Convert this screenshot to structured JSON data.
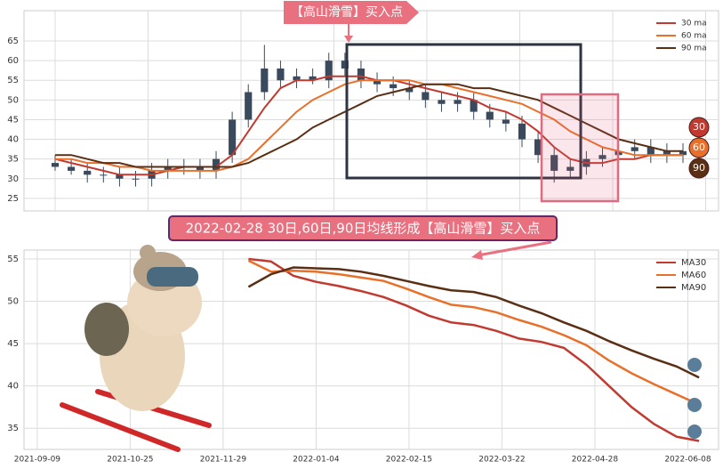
{
  "chart_data": [
    {
      "type": "candlestick",
      "annotation": "【高山滑雪】买入点",
      "color": "#3a4a5c",
      "open": [
        34,
        33,
        32,
        31,
        31,
        30,
        30,
        32,
        33,
        33,
        32,
        36,
        45,
        52,
        58,
        55,
        56,
        55,
        60,
        58,
        55,
        54,
        53,
        52,
        50,
        49,
        50,
        47,
        45,
        44,
        40,
        36,
        32,
        33,
        35,
        36,
        37,
        38,
        36,
        37
      ],
      "high": [
        36,
        35,
        34,
        33,
        33,
        32,
        34,
        35,
        35,
        35,
        37,
        47,
        54,
        64,
        60,
        58,
        58,
        62,
        62,
        60,
        57,
        56,
        55,
        54,
        52,
        52,
        52,
        49,
        47,
        46,
        42,
        38,
        35,
        37,
        38,
        39,
        40,
        40,
        39,
        39
      ],
      "low": [
        32,
        31,
        29,
        29,
        28,
        28,
        28,
        30,
        31,
        30,
        30,
        34,
        43,
        50,
        53,
        53,
        54,
        53,
        56,
        53,
        52,
        51,
        50,
        48,
        47,
        47,
        45,
        43,
        42,
        38,
        34,
        29,
        30,
        31,
        33,
        34,
        35,
        34,
        34,
        34
      ],
      "close": [
        33,
        32,
        31,
        31,
        30,
        30,
        32,
        33,
        33,
        32,
        35,
        45,
        52,
        58,
        55,
        56,
        55,
        60,
        58,
        55,
        54,
        53,
        52,
        50,
        49,
        50,
        47,
        45,
        44,
        40,
        36,
        32,
        33,
        35,
        36,
        37,
        38,
        36,
        37,
        36
      ],
      "series": [
        {
          "name": "30 ma",
          "color": "#c23a2f",
          "values": [
            35,
            34,
            33,
            32,
            31,
            31,
            31,
            32,
            33,
            33,
            33,
            36,
            42,
            48,
            53,
            55,
            55,
            56,
            56,
            56,
            55,
            55,
            54,
            53,
            52,
            51,
            50,
            48,
            47,
            45,
            42,
            38,
            35,
            34,
            34,
            35,
            35,
            36,
            36,
            36
          ]
        },
        {
          "name": "60 ma",
          "color": "#e8702a",
          "values": [
            35,
            35,
            34,
            34,
            33,
            33,
            32,
            32,
            32,
            32,
            32,
            33,
            35,
            39,
            43,
            47,
            50,
            52,
            54,
            55,
            55,
            55,
            55,
            54,
            54,
            53,
            52,
            51,
            50,
            49,
            47,
            45,
            42,
            40,
            38,
            37,
            36,
            36,
            36,
            36
          ]
        },
        {
          "name": "90 ma",
          "color": "#5a2f14",
          "values": [
            36,
            36,
            35,
            34,
            34,
            33,
            33,
            33,
            33,
            33,
            33,
            33,
            34,
            36,
            38,
            40,
            43,
            45,
            47,
            49,
            51,
            52,
            53,
            54,
            54,
            54,
            53,
            53,
            52,
            51,
            50,
            48,
            46,
            44,
            42,
            40,
            39,
            38,
            37,
            37
          ]
        }
      ],
      "end_labels": [
        "30",
        "60",
        "90"
      ],
      "ylim": [
        21.8,
        72.7
      ],
      "yticks": [
        25,
        30,
        35,
        40,
        45,
        50,
        55,
        60,
        65
      ],
      "grid": true,
      "legend": "upper right"
    },
    {
      "type": "line",
      "title": "2022-02-28 30日,60日,90日均线形成【高山滑雪】买入点",
      "x": [
        75,
        83,
        91,
        99,
        107,
        115,
        123,
        131,
        139,
        147,
        155,
        163,
        171,
        179,
        187,
        195,
        203,
        211,
        219,
        227,
        235
      ],
      "series": [
        {
          "name": "MA30",
          "color": "#c23a2f",
          "values": [
            55,
            54.7,
            53,
            52.3,
            51.8,
            51.2,
            50.5,
            49.5,
            48.3,
            47.5,
            47.2,
            46.5,
            45.6,
            45.2,
            44.5,
            42.5,
            40,
            37.5,
            35.5,
            34,
            33.5
          ]
        },
        {
          "name": "MA60",
          "color": "#e8702a",
          "values": [
            54.8,
            53.5,
            53.6,
            53.5,
            53.2,
            52.8,
            52.4,
            51.5,
            50.5,
            49.6,
            49.3,
            48.7,
            47.8,
            47,
            46,
            44.8,
            43,
            41.5,
            40.2,
            39,
            37.8
          ]
        },
        {
          "name": "MA90",
          "color": "#5a2f14",
          "values": [
            51.7,
            53.2,
            54,
            53.9,
            53.8,
            53.5,
            53,
            52.4,
            51.8,
            51.3,
            51.1,
            50.5,
            49.5,
            48.6,
            47.5,
            46.5,
            45.3,
            44.2,
            43.2,
            42.3,
            41
          ]
        }
      ],
      "xlim": [
        -4.7,
        241.9
      ],
      "xticks": [
        {
          "value": 0,
          "label": "2021-09-09"
        },
        {
          "value": 33,
          "label": "2021-10-25"
        },
        {
          "value": 66,
          "label": "2021-11-29"
        },
        {
          "value": 99,
          "label": "2022-01-04"
        },
        {
          "value": 132,
          "label": "2022-02-15"
        },
        {
          "value": 165,
          "label": "2022-03-22"
        },
        {
          "value": 198,
          "label": "2022-04-28"
        },
        {
          "value": 231,
          "label": "2022-06-08"
        }
      ],
      "ylim": [
        32.5,
        56.05
      ],
      "yticks": [
        35,
        40,
        45,
        50,
        55
      ],
      "grid": true,
      "legend": "upper right"
    }
  ]
}
